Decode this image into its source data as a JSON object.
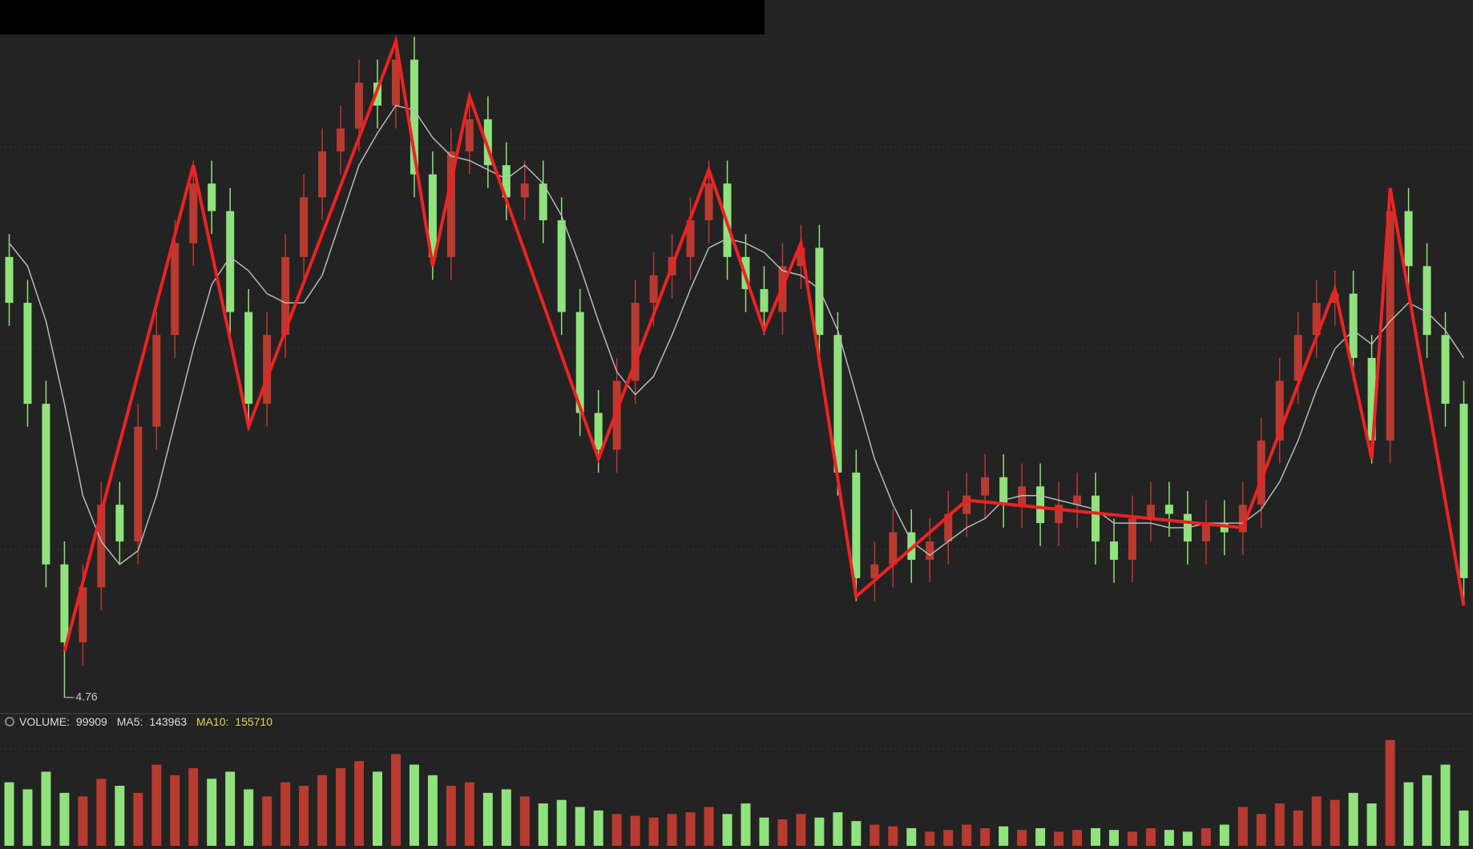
{
  "chart_data": {
    "type": "candlestick",
    "open": [
      5.72,
      5.62,
      5.4,
      5.05,
      4.88,
      5.0,
      5.18,
      5.1,
      5.35,
      5.55,
      5.75,
      5.88,
      5.82,
      5.6,
      5.4,
      5.55,
      5.72,
      5.85,
      5.95,
      6.0,
      6.1,
      6.05,
      6.15,
      5.9,
      5.72,
      5.95,
      6.02,
      5.92,
      5.85,
      5.88,
      5.8,
      5.6,
      5.38,
      5.3,
      5.45,
      5.62,
      5.68,
      5.72,
      5.8,
      5.88,
      5.72,
      5.65,
      5.6,
      5.7,
      5.74,
      5.55,
      5.25,
      5.02,
      5.05,
      5.12,
      5.06,
      5.1,
      5.16,
      5.2,
      5.24,
      5.18,
      5.22,
      5.14,
      5.18,
      5.2,
      5.1,
      5.06,
      5.15,
      5.18,
      5.16,
      5.1,
      5.14,
      5.12,
      5.18,
      5.32,
      5.45,
      5.55,
      5.62,
      5.64,
      5.5,
      5.32,
      5.82,
      5.7,
      5.55,
      5.4
    ],
    "high": [
      5.77,
      5.67,
      5.45,
      5.1,
      5.05,
      5.23,
      5.23,
      5.4,
      5.6,
      5.8,
      5.93,
      5.93,
      5.87,
      5.65,
      5.6,
      5.77,
      5.9,
      6.0,
      6.05,
      6.15,
      6.15,
      6.2,
      6.2,
      5.95,
      6.0,
      6.07,
      6.07,
      5.97,
      5.93,
      5.93,
      5.85,
      5.65,
      5.43,
      5.5,
      5.67,
      5.73,
      5.77,
      5.85,
      5.93,
      5.93,
      5.77,
      5.7,
      5.75,
      5.79,
      5.79,
      5.6,
      5.3,
      5.1,
      5.17,
      5.17,
      5.15,
      5.21,
      5.25,
      5.29,
      5.29,
      5.27,
      5.27,
      5.23,
      5.25,
      5.25,
      5.15,
      5.2,
      5.23,
      5.23,
      5.21,
      5.19,
      5.19,
      5.23,
      5.37,
      5.5,
      5.6,
      5.67,
      5.69,
      5.69,
      5.55,
      5.87,
      5.87,
      5.75,
      5.6,
      5.45
    ],
    "low": [
      5.57,
      5.35,
      5.0,
      4.76,
      4.83,
      4.95,
      5.05,
      5.05,
      5.3,
      5.5,
      5.7,
      5.77,
      5.55,
      5.35,
      5.35,
      5.5,
      5.67,
      5.8,
      5.9,
      5.95,
      6.0,
      6.0,
      5.85,
      5.67,
      5.67,
      5.9,
      5.87,
      5.8,
      5.8,
      5.75,
      5.55,
      5.33,
      5.25,
      5.25,
      5.4,
      5.57,
      5.63,
      5.67,
      5.75,
      5.67,
      5.6,
      5.55,
      5.55,
      5.65,
      5.5,
      5.2,
      4.97,
      4.97,
      5.0,
      5.01,
      5.01,
      5.05,
      5.11,
      5.15,
      5.13,
      5.13,
      5.09,
      5.09,
      5.13,
      5.05,
      5.01,
      5.01,
      5.1,
      5.11,
      5.05,
      5.05,
      5.07,
      5.07,
      5.13,
      5.27,
      5.4,
      5.5,
      5.57,
      5.45,
      5.27,
      5.27,
      5.65,
      5.5,
      5.35,
      4.97
    ],
    "close": [
      5.62,
      5.4,
      5.05,
      4.88,
      5.0,
      5.18,
      5.1,
      5.35,
      5.55,
      5.75,
      5.88,
      5.82,
      5.6,
      5.4,
      5.55,
      5.72,
      5.85,
      5.95,
      6.0,
      6.1,
      6.05,
      6.15,
      5.9,
      5.72,
      5.95,
      6.02,
      5.92,
      5.85,
      5.88,
      5.8,
      5.6,
      5.38,
      5.3,
      5.45,
      5.62,
      5.68,
      5.72,
      5.8,
      5.88,
      5.72,
      5.65,
      5.6,
      5.7,
      5.74,
      5.55,
      5.25,
      5.02,
      5.05,
      5.12,
      5.06,
      5.1,
      5.16,
      5.2,
      5.24,
      5.18,
      5.22,
      5.14,
      5.18,
      5.2,
      5.1,
      5.06,
      5.15,
      5.18,
      5.16,
      5.1,
      5.14,
      5.12,
      5.18,
      5.32,
      5.45,
      5.55,
      5.62,
      5.64,
      5.5,
      5.32,
      5.82,
      5.7,
      5.55,
      5.4,
      5.02
    ],
    "ma": [
      5.75,
      5.7,
      5.58,
      5.4,
      5.2,
      5.1,
      5.05,
      5.08,
      5.2,
      5.36,
      5.52,
      5.66,
      5.72,
      5.69,
      5.64,
      5.62,
      5.62,
      5.68,
      5.8,
      5.92,
      5.99,
      6.05,
      6.04,
      5.98,
      5.94,
      5.93,
      5.91,
      5.89,
      5.92,
      5.88,
      5.81,
      5.7,
      5.58,
      5.47,
      5.42,
      5.46,
      5.55,
      5.65,
      5.74,
      5.76,
      5.75,
      5.73,
      5.69,
      5.68,
      5.65,
      5.56,
      5.42,
      5.28,
      5.18,
      5.1,
      5.07,
      5.1,
      5.13,
      5.15,
      5.19,
      5.2,
      5.2,
      5.19,
      5.18,
      5.17,
      5.14,
      5.14,
      5.14,
      5.13,
      5.13,
      5.14,
      5.14,
      5.14,
      5.17,
      5.23,
      5.32,
      5.43,
      5.52,
      5.56,
      5.53,
      5.58,
      5.62,
      5.6,
      5.56,
      5.5
    ],
    "volume": [
      180000,
      160000,
      210000,
      150000,
      140000,
      190000,
      170000,
      150000,
      230000,
      200000,
      220000,
      190000,
      210000,
      160000,
      140000,
      180000,
      170000,
      200000,
      220000,
      240000,
      210000,
      260000,
      230000,
      200000,
      170000,
      180000,
      150000,
      160000,
      140000,
      120000,
      130000,
      110000,
      100000,
      90000,
      85000,
      80000,
      90000,
      95000,
      110000,
      90000,
      120000,
      80000,
      75000,
      90000,
      80000,
      95000,
      70000,
      60000,
      55000,
      50000,
      40000,
      45000,
      60000,
      50000,
      55000,
      45000,
      50000,
      40000,
      45000,
      50000,
      45000,
      40000,
      50000,
      45000,
      40000,
      50000,
      60000,
      110000,
      90000,
      120000,
      100000,
      140000,
      130000,
      150000,
      120000,
      300000,
      180000,
      200000,
      230000,
      99909
    ],
    "ylim": [
      4.73,
      6.28
    ],
    "vlim": [
      0,
      320000
    ],
    "up_color": "#b83a30",
    "down_color": "#8fe27c",
    "ma_color": "#b8b8b8",
    "zigzag": {
      "color": "#ee2222",
      "x": [
        3,
        10,
        13,
        21,
        23,
        25,
        32,
        38,
        41,
        43,
        46,
        52,
        67,
        72,
        74,
        75,
        79
      ],
      "values": [
        4.86,
        5.92,
        5.35,
        6.19,
        5.7,
        6.07,
        5.28,
        5.91,
        5.56,
        5.75,
        4.98,
        5.19,
        5.13,
        5.65,
        5.28,
        5.87,
        4.96
      ]
    },
    "volume_label": "VOLUME:",
    "ma5_label": "MA5:",
    "ma5_value": 143963,
    "ma10_label": "MA10:",
    "ma10_value": 155710
  }
}
